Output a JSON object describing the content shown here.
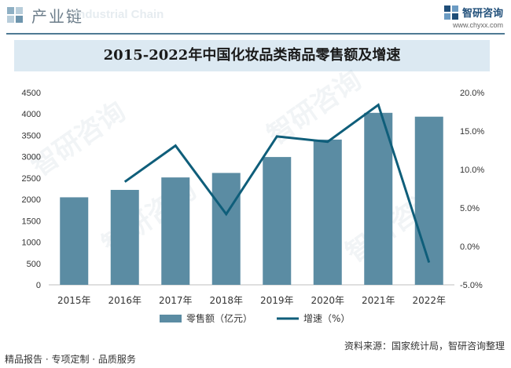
{
  "header": {
    "title": "产业链",
    "watermark": "Industrial Chain",
    "brand_name": "智研咨询",
    "brand_url": "www.chyxx.com"
  },
  "title": "2015-2022年中国化妆品类商品零售额及增速",
  "chart_data": {
    "type": "bar+line",
    "categories": [
      "2015年",
      "2016年",
      "2017年",
      "2018年",
      "2019年",
      "2020年",
      "2021年",
      "2022年"
    ],
    "series": [
      {
        "name": "零售额（亿元）",
        "type": "bar",
        "axis": "left",
        "values": [
          2049,
          2222,
          2514,
          2619,
          2992,
          3400,
          4026,
          3936
        ]
      },
      {
        "name": "增速（%）",
        "type": "line",
        "axis": "right",
        "values": [
          null,
          8.4,
          13.1,
          4.2,
          14.3,
          13.6,
          18.4,
          -2.1
        ]
      }
    ],
    "y_left": {
      "min": 0,
      "max": 4500,
      "step": 500,
      "ticks": [
        "0",
        "500",
        "1000",
        "1500",
        "2000",
        "2500",
        "3000",
        "3500",
        "4000",
        "4500"
      ]
    },
    "y_right": {
      "min": -5,
      "max": 20,
      "step": 5,
      "ticks": [
        "-5.0%",
        "0.0%",
        "5.0%",
        "10.0%",
        "15.0%",
        "20.0%"
      ]
    },
    "colors": {
      "bar": "#5b8ca3",
      "line": "#0f5e7a"
    },
    "legend_position": "bottom-center"
  },
  "footer": {
    "left": "精品报告 · 专项定制 · 品质服务",
    "right": "资料来源：国家统计局，智研咨询整理",
    "watermark": "智研咨询"
  }
}
